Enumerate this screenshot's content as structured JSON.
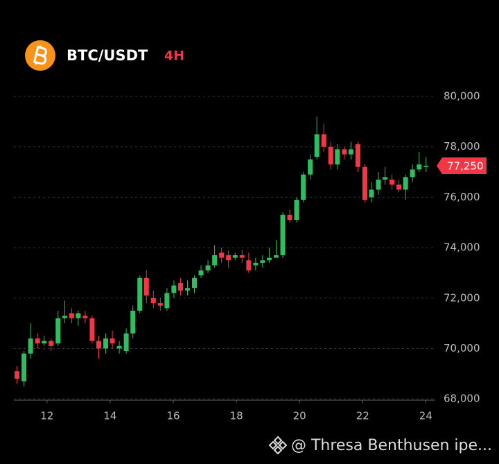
{
  "chart_data": {
    "type": "candlestick",
    "title": "BTC/USDT",
    "interval": "4H",
    "watermark": "@ Thresa Benthusen ipe...",
    "x": [
      11.05,
      11.27,
      11.48,
      11.7,
      11.91,
      12.13,
      12.35,
      12.56,
      12.78,
      12.99,
      13.21,
      13.43,
      13.64,
      13.86,
      14.07,
      14.29,
      14.51,
      14.72,
      14.94,
      15.15,
      15.37,
      15.59,
      15.8,
      16.02,
      16.23,
      16.45,
      16.67,
      16.88,
      17.1,
      17.31,
      17.53,
      17.75,
      17.96,
      18.18,
      18.39,
      18.61,
      18.83,
      19.04,
      19.26,
      19.47,
      19.69,
      19.91,
      20.12,
      20.34,
      20.55,
      20.77,
      20.99,
      21.2,
      21.42,
      21.63,
      21.85,
      22.07,
      22.28,
      22.5,
      22.71,
      22.93,
      23.15,
      23.36,
      23.58,
      23.79,
      24.01
    ],
    "open": [
      69100,
      68700,
      69800,
      70400,
      70200,
      70300,
      70200,
      71200,
      71400,
      71200,
      71300,
      71200,
      70300,
      70000,
      70400,
      70000,
      69900,
      70600,
      71500,
      72800,
      72000,
      71800,
      71600,
      72200,
      72600,
      72300,
      72400,
      72900,
      73100,
      73300,
      73800,
      73700,
      73600,
      73700,
      73500,
      73300,
      73400,
      73500,
      73600,
      73700,
      75300,
      75100,
      75900,
      76900,
      77600,
      78500,
      78000,
      77300,
      77900,
      77700,
      78100,
      77200,
      76000,
      76300,
      76700,
      76700,
      76500,
      76300,
      76800,
      77100,
      77200
    ],
    "high": [
      69300,
      69900,
      71000,
      70600,
      70500,
      70400,
      71500,
      71900,
      71600,
      71500,
      71500,
      71300,
      70500,
      70600,
      70700,
      70300,
      70800,
      71700,
      72900,
      73100,
      72300,
      72000,
      72400,
      72700,
      72800,
      72700,
      72900,
      73300,
      73500,
      74100,
      74000,
      73900,
      73800,
      73900,
      73800,
      73600,
      73700,
      74000,
      74300,
      75400,
      75500,
      76000,
      77000,
      77700,
      79200,
      78900,
      78200,
      78100,
      78000,
      78200,
      78200,
      77300,
      76600,
      77000,
      77200,
      76900,
      76700,
      76900,
      77300,
      77800,
      77600
    ],
    "low": [
      68600,
      68500,
      69600,
      70000,
      70100,
      69900,
      70100,
      71000,
      71000,
      70900,
      71000,
      70200,
      69600,
      69800,
      70000,
      69800,
      69800,
      70400,
      71400,
      71800,
      71600,
      71500,
      71500,
      72000,
      72100,
      72100,
      72200,
      72800,
      73000,
      73200,
      73400,
      73200,
      73500,
      73400,
      73000,
      73100,
      73200,
      73400,
      73600,
      73600,
      75000,
      75000,
      75800,
      76700,
      77500,
      77800,
      77100,
      77100,
      77500,
      77500,
      77000,
      75800,
      75800,
      76100,
      76500,
      76300,
      76200,
      75900,
      76600,
      77000,
      77000
    ],
    "close": [
      68800,
      69800,
      70400,
      70200,
      70300,
      70100,
      71200,
      71300,
      71200,
      71400,
      71200,
      70300,
      70000,
      70400,
      70200,
      70100,
      70600,
      71500,
      72800,
      72100,
      71800,
      71700,
      72200,
      72500,
      72300,
      72400,
      72800,
      73100,
      73300,
      73700,
      73600,
      73500,
      73700,
      73600,
      73100,
      73400,
      73500,
      73600,
      73700,
      75300,
      75100,
      75900,
      76900,
      77500,
      78500,
      78000,
      77300,
      77900,
      77700,
      77900,
      77200,
      75900,
      76300,
      76700,
      76800,
      76500,
      76300,
      76800,
      77100,
      77300,
      77250
    ],
    "up_color": "#2ebd60",
    "down_color": "#f23645",
    "current_price": {
      "value": 77250,
      "label": "77,250"
    },
    "xlim": [
      10.95,
      24.3
    ],
    "xticks": [
      12,
      14,
      16,
      18,
      20,
      22,
      24
    ],
    "ylim": [
      67950,
      80550
    ],
    "yticks": [
      {
        "value": 68000,
        "label": "68,000"
      },
      {
        "value": 70000,
        "label": "70,000"
      },
      {
        "value": 72000,
        "label": "72,000"
      },
      {
        "value": 74000,
        "label": "74,000"
      },
      {
        "value": 76000,
        "label": "76,000"
      },
      {
        "value": 78000,
        "label": "78,000"
      },
      {
        "value": 80000,
        "label": "80,000"
      }
    ],
    "grid": true
  }
}
